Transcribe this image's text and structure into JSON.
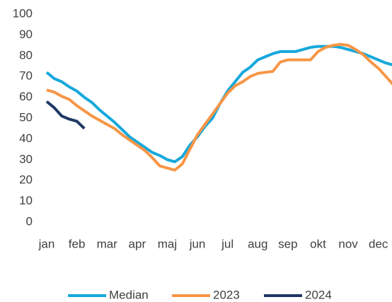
{
  "chart_data": {
    "type": "line",
    "x": [
      0,
      0.25,
      0.5,
      0.75,
      1,
      1.25,
      1.5,
      1.75,
      2,
      2.25,
      2.5,
      2.75,
      3,
      3.25,
      3.5,
      3.75,
      4,
      4.25,
      4.5,
      4.75,
      5,
      5.25,
      5.5,
      5.75,
      6,
      6.25,
      6.5,
      6.75,
      7,
      7.25,
      7.5,
      7.75,
      8,
      8.25,
      8.5,
      8.75,
      9,
      9.25,
      9.5,
      9.75,
      10,
      10.25,
      10.5,
      10.75,
      11,
      11.25,
      11.5
    ],
    "series": [
      {
        "name": "Median",
        "color": "#16a8dc",
        "values": [
          72,
          69,
          67.5,
          65,
          63,
          60,
          57.5,
          54,
          51,
          48,
          44.5,
          41,
          38.5,
          36,
          33.5,
          32,
          30,
          29,
          31.5,
          37,
          41,
          46,
          50,
          57,
          63,
          67.5,
          72,
          74.5,
          78,
          79.5,
          81,
          82,
          82,
          82,
          83,
          84,
          84.5,
          84.5,
          84.5,
          84,
          83,
          82,
          81,
          79.5,
          78,
          76.5,
          75.5
        ]
      },
      {
        "name": "2023",
        "color": "#f79646",
        "values": [
          63.5,
          62.5,
          60.5,
          59,
          56,
          53.5,
          51,
          49,
          47,
          45,
          42,
          39.5,
          37,
          34.5,
          31,
          27,
          26,
          25,
          28,
          35,
          42,
          47,
          52,
          57,
          62,
          65.5,
          67.5,
          70,
          71.5,
          72,
          72.5,
          77,
          78,
          78,
          78,
          78,
          82,
          84,
          85,
          85.5,
          85,
          83,
          80.5,
          77,
          74,
          70,
          66
        ]
      },
      {
        "name": "2024",
        "color": "#1f3864",
        "values": [
          58,
          55,
          51,
          49.5,
          48.5,
          45,
          null,
          null,
          null,
          null,
          null,
          null,
          null,
          null,
          null,
          null,
          null,
          null,
          null,
          null,
          null,
          null,
          null,
          null,
          null,
          null,
          null,
          null,
          null,
          null,
          null,
          null,
          null,
          null,
          null,
          null,
          null,
          null,
          null,
          null,
          null,
          null,
          null,
          null,
          null,
          null,
          null
        ]
      }
    ],
    "xlim": [
      0,
      11.5
    ],
    "xticks": [
      {
        "value": 0,
        "label": "jan"
      },
      {
        "value": 1,
        "label": "feb"
      },
      {
        "value": 2,
        "label": "mar"
      },
      {
        "value": 3,
        "label": "apr"
      },
      {
        "value": 4,
        "label": "maj"
      },
      {
        "value": 5,
        "label": "jun"
      },
      {
        "value": 6,
        "label": "jul"
      },
      {
        "value": 7,
        "label": "aug"
      },
      {
        "value": 8,
        "label": "sep"
      },
      {
        "value": 9,
        "label": "okt"
      },
      {
        "value": 10,
        "label": "nov"
      },
      {
        "value": 11,
        "label": "dec"
      }
    ],
    "ylim": [
      0,
      100
    ],
    "yticks": [
      0,
      10,
      20,
      30,
      40,
      50,
      60,
      70,
      80,
      90,
      100
    ],
    "legend": "bottom"
  }
}
